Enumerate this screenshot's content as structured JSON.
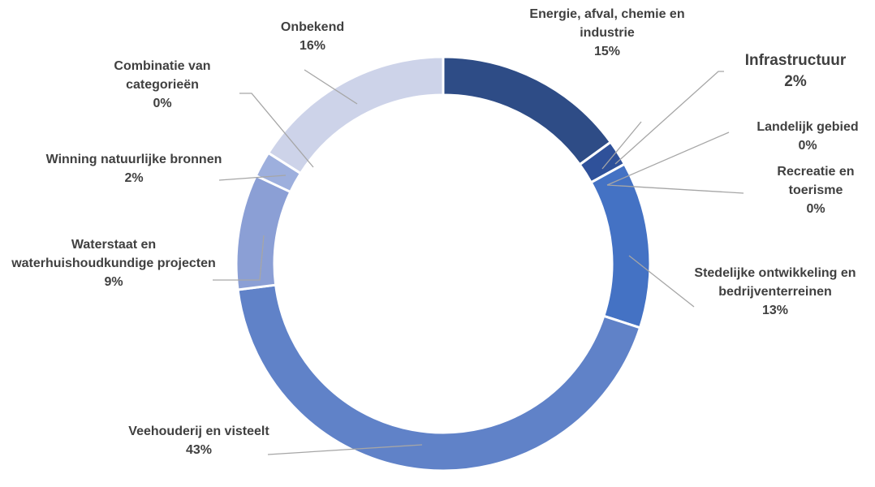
{
  "chart_data": {
    "type": "donut",
    "categories": [
      "Energie, afval, chemie en industrie",
      "Infrastructuur",
      "Landelijk gebied",
      "Recreatie en toerisme",
      "Stedelijke ontwikkeling en bedrijventerreinen",
      "Veehouderij en visteelt",
      "Waterstaat en waterhuishoudkundige projecten",
      "Winning natuurlijke bronnen",
      "Combinatie van categorieën",
      "Onbekend"
    ],
    "values": [
      15,
      2,
      0,
      0,
      13,
      43,
      9,
      2,
      0,
      16
    ],
    "value_labels": [
      "15%",
      "2%",
      "0%",
      "0%",
      "13%",
      "43%",
      "9%",
      "2%",
      "0%",
      "16%"
    ],
    "colors": [
      "#2e4c86",
      "#2f519a",
      "#3660b0",
      "#3a66b8",
      "#4472c4",
      "#6082c8",
      "#8b9fd5",
      "#9dafdd",
      "#b7c3e4",
      "#cdd3e9"
    ]
  }
}
